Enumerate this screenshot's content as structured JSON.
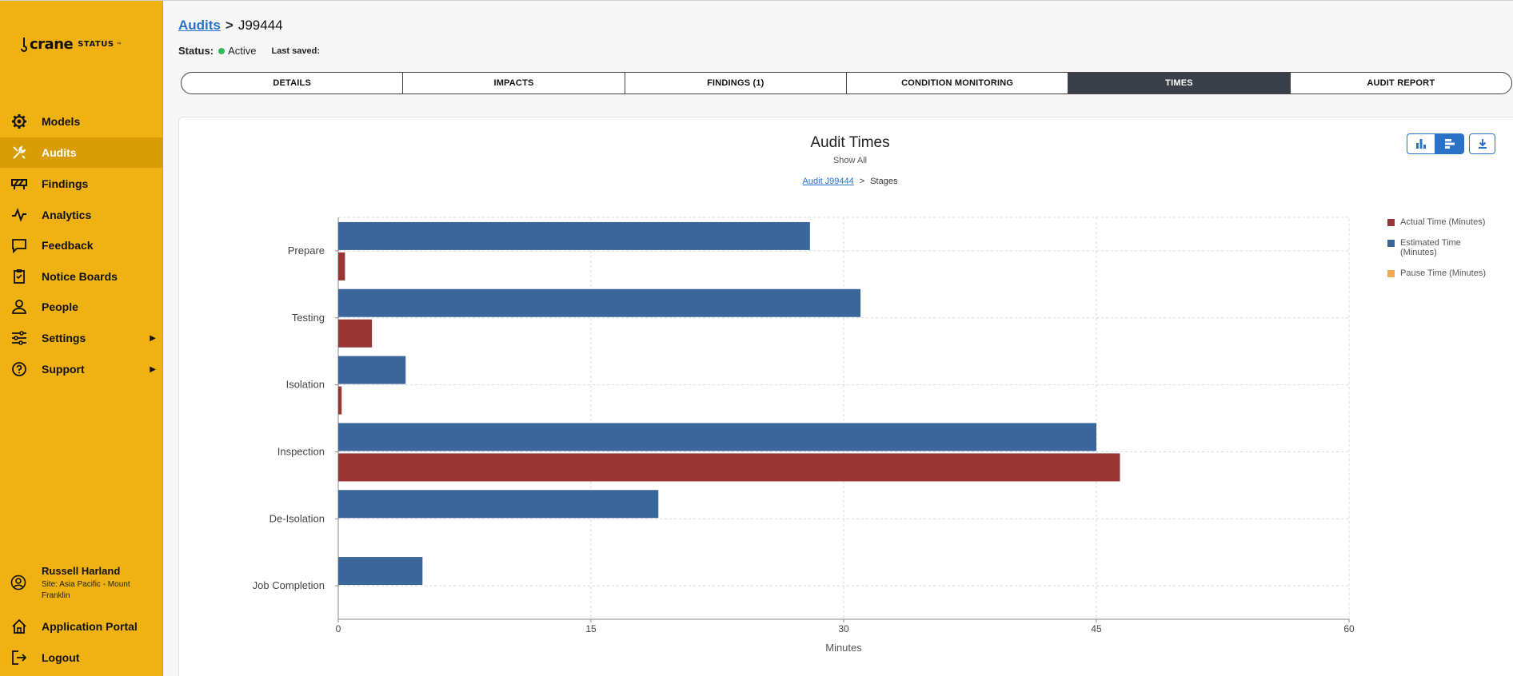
{
  "app": {
    "logo_brand": "crane",
    "logo_sub": "STATUS",
    "logo_tm": "™"
  },
  "sidebar": {
    "items": [
      {
        "label": "Models",
        "icon": "gear-icon"
      },
      {
        "label": "Audits",
        "icon": "tools-icon",
        "active": true
      },
      {
        "label": "Findings",
        "icon": "barrier-icon"
      },
      {
        "label": "Analytics",
        "icon": "pulse-icon"
      },
      {
        "label": "Feedback",
        "icon": "chat-icon"
      },
      {
        "label": "Notice Boards",
        "icon": "clipboard-icon"
      },
      {
        "label": "People",
        "icon": "person-icon"
      },
      {
        "label": "Settings",
        "icon": "sliders-icon",
        "has_submenu": true
      },
      {
        "label": "Support",
        "icon": "help-icon",
        "has_submenu": true
      }
    ],
    "user": {
      "name": "Russell Harland",
      "site": "Site: Asia Pacific - Mount Franklin"
    },
    "bottom_items": [
      {
        "label": "Application Portal",
        "icon": "home-icon"
      },
      {
        "label": "Logout",
        "icon": "logout-icon"
      }
    ]
  },
  "header": {
    "breadcrumb_root": "Audits",
    "breadcrumb_sep": ">",
    "breadcrumb_current": "J99444",
    "status_label": "Status:",
    "status_value": "Active",
    "status_color": "#2ebd59",
    "last_saved_label": "Last saved:"
  },
  "tabs": [
    {
      "label": "DETAILS"
    },
    {
      "label": "IMPACTS"
    },
    {
      "label": "FINDINGS (1)"
    },
    {
      "label": "CONDITION MONITORING"
    },
    {
      "label": "TIMES",
      "active": true
    },
    {
      "label": "AUDIT REPORT"
    }
  ],
  "chart_header": {
    "title": "Audit Times",
    "show_all": "Show All",
    "crumb_link": "Audit J99444",
    "crumb_sep": ">",
    "crumb_current": "Stages"
  },
  "toolbar": {
    "vertical_icon": "vertical-bar-chart-icon",
    "horizontal_icon": "horizontal-bar-chart-icon",
    "download_icon": "download-icon"
  },
  "chart_data": {
    "type": "bar",
    "orientation": "horizontal",
    "categories": [
      "Prepare",
      "Testing",
      "Isolation",
      "Inspection",
      "De-Isolation",
      "Job Completion"
    ],
    "series": [
      {
        "name": "Estimated Time (Minutes)",
        "color": "#3b6699",
        "values": [
          28,
          31,
          4,
          45,
          19,
          5
        ]
      },
      {
        "name": "Actual Time (Minutes)",
        "color": "#993535",
        "values": [
          0.4,
          2,
          0.2,
          46.4,
          0,
          0
        ]
      },
      {
        "name": "Pause Time (Minutes)",
        "color": "#f2a952",
        "values": [
          0,
          0,
          0,
          0,
          0,
          0
        ]
      }
    ],
    "legend_order": [
      "Actual Time (Minutes)",
      "Estimated Time (Minutes)",
      "Pause Time (Minutes)"
    ],
    "xlabel": "Minutes",
    "xlim": [
      0,
      60
    ],
    "xticks": [
      0,
      15,
      30,
      45,
      60
    ],
    "grid": true,
    "legend_position": "right"
  }
}
